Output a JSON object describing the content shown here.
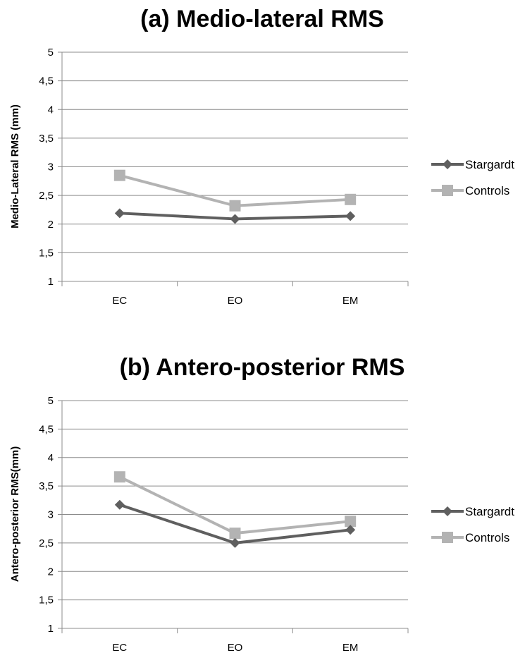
{
  "chart_data": [
    {
      "type": "line",
      "title": "(a) Medio-lateral RMS",
      "xlabel": "",
      "ylabel": "Medio-Lateral RMS (mm)",
      "categories": [
        "EC",
        "EO",
        "EM"
      ],
      "ylim": [
        1,
        5
      ],
      "yticks": [
        "1",
        "1,5",
        "2",
        "2,5",
        "3",
        "3,5",
        "4",
        "4,5",
        "5"
      ],
      "grid": true,
      "legend_position": "right",
      "series": [
        {
          "name": "Stargardt",
          "values": [
            2.19,
            2.09,
            2.14
          ],
          "color": "#5f5f5f",
          "marker": "diamond"
        },
        {
          "name": "Controls",
          "values": [
            2.85,
            2.32,
            2.43
          ],
          "color": "#b3b3b3",
          "marker": "square"
        }
      ]
    },
    {
      "type": "line",
      "title": "(b) Antero-posterior RMS",
      "xlabel": "",
      "ylabel": "Antero-posterior RMS(mm)",
      "categories": [
        "EC",
        "EO",
        "EM"
      ],
      "ylim": [
        1,
        5
      ],
      "yticks": [
        "1",
        "1,5",
        "2",
        "2,5",
        "3",
        "3,5",
        "4",
        "4,5",
        "5"
      ],
      "grid": true,
      "legend_position": "right",
      "series": [
        {
          "name": "Stargardt",
          "values": [
            3.17,
            2.5,
            2.73
          ],
          "color": "#5f5f5f",
          "marker": "diamond"
        },
        {
          "name": "Controls",
          "values": [
            3.66,
            2.67,
            2.88
          ],
          "color": "#b3b3b3",
          "marker": "square"
        }
      ]
    }
  ]
}
